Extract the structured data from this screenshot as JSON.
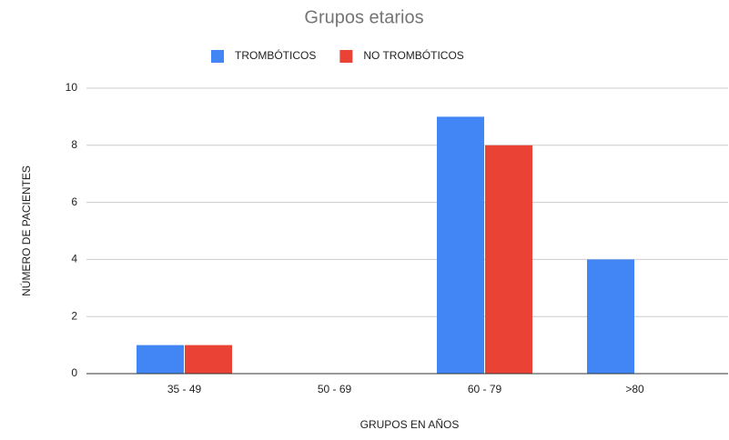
{
  "chart_data": {
    "type": "bar",
    "title": "Grupos etarios",
    "x_label": "GRUPOS EN AÑOS",
    "y_label": "NÚMERO DE PACIENTES",
    "categories": [
      "35 - 49",
      "50 - 69",
      "60 - 79",
      ">80"
    ],
    "series": [
      {
        "name": "TROMBÓTICOS",
        "color": "#4285f4",
        "values": [
          1,
          0,
          9,
          4
        ]
      },
      {
        "name": "NO TROMBÓTICOS",
        "color": "#ea4335",
        "values": [
          1,
          0,
          8,
          0
        ]
      }
    ],
    "ylim": [
      0,
      10
    ],
    "yticks": [
      0,
      2,
      4,
      6,
      8,
      10
    ],
    "grid": true,
    "legend": "top"
  }
}
